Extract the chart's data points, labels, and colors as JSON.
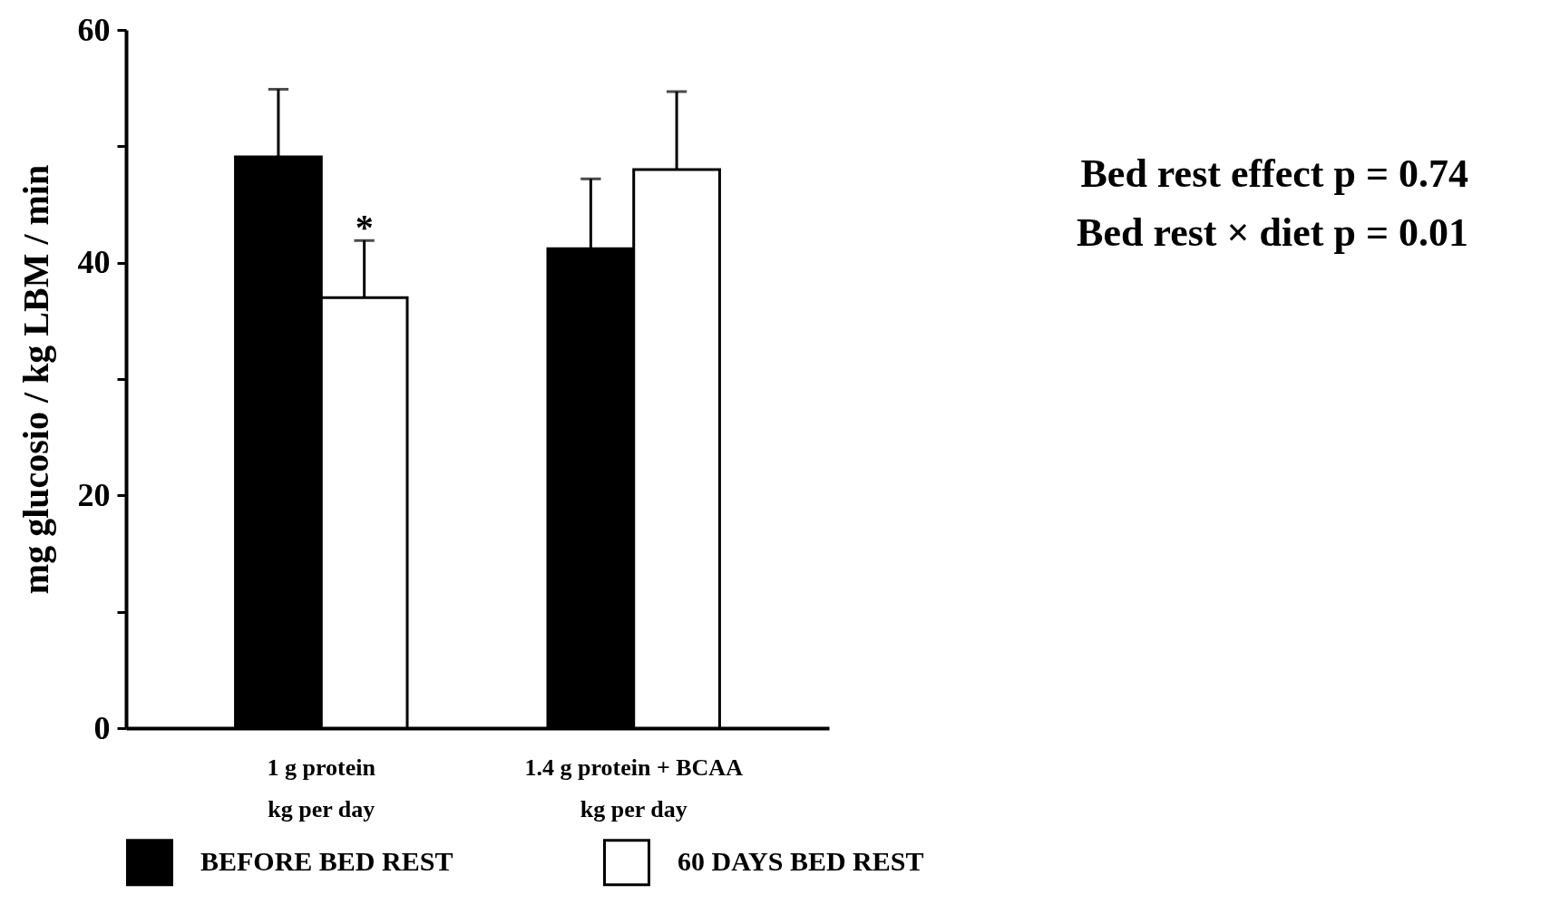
{
  "chart_data": {
    "type": "bar",
    "ylabel": "mg glucosio / kg LBM / min",
    "categories": [
      "1 g protein\nkg per day",
      "1.4 g protein + BCAA\nkg per day"
    ],
    "series": [
      {
        "name": "BEFORE BED REST",
        "color": "#000000",
        "values": [
          49.1,
          41.2
        ],
        "errors": [
          [
            49.1,
            54.9
          ],
          [
            41.2,
            47.2
          ]
        ]
      },
      {
        "name": "60 DAYS BED REST",
        "color": "#ffffff",
        "values": [
          37.0,
          48.0
        ],
        "errors": [
          [
            37.0,
            41.9
          ],
          [
            48.0,
            54.7
          ]
        ]
      }
    ],
    "ylim": [
      0,
      60
    ],
    "yticks": [
      0,
      {
        "value": 10,
        "label": null
      },
      20,
      {
        "value": 30,
        "label": null
      },
      40,
      {
        "value": 50,
        "label": null
      },
      60
    ],
    "annotations": [
      {
        "text": "*",
        "x": "1 g protein\nkg per day",
        "y": 42.5
      },
      "Bed rest effect p = 0.74",
      "Bed rest × diet p = 0.01"
    ],
    "grid": false,
    "legend": "bottom"
  }
}
